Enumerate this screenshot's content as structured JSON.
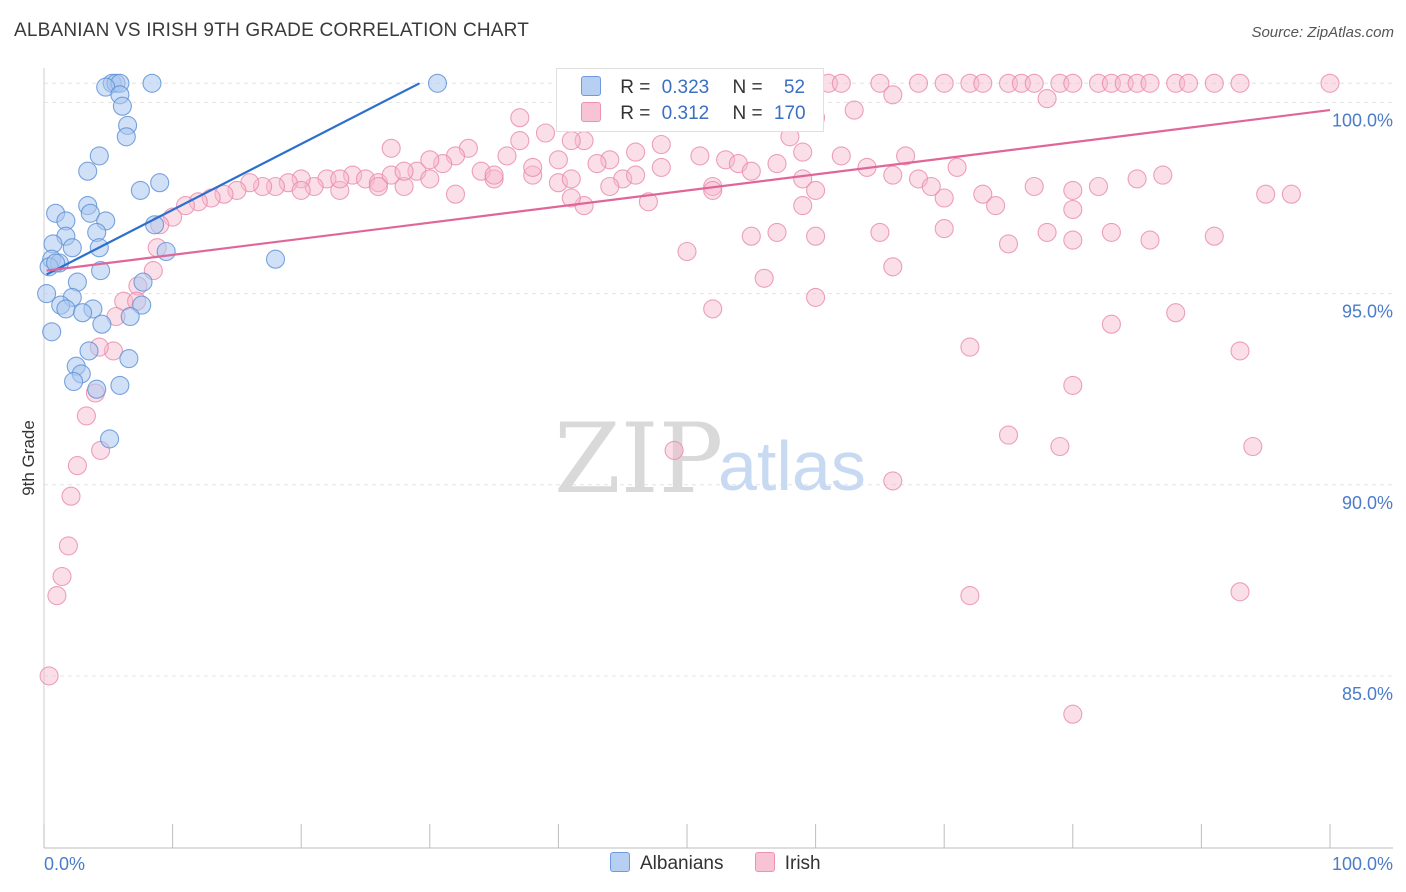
{
  "header": {
    "title": "ALBANIAN VS IRISH 9TH GRADE CORRELATION CHART",
    "source": "Source: ZipAtlas.com"
  },
  "watermark": {
    "zip": "ZIP",
    "atlas": "atlas"
  },
  "colors": {
    "albanian_fill": "#a9c6ee",
    "albanian_stroke": "#5b8fd6",
    "albanian_line": "#2d6fcf",
    "irish_fill": "#f6b8cc",
    "irish_stroke": "#e98aaa",
    "irish_line": "#e0669a",
    "grid": "#e4e4e4",
    "tick_text": "#4a7cc9"
  },
  "legend": {
    "rows": [
      {
        "r_label": "R =",
        "r_value": "0.323",
        "n_label": "N =",
        "n_value": "52"
      },
      {
        "r_label": "R =",
        "r_value": "0.312",
        "n_label": "N =",
        "n_value": "170"
      }
    ],
    "bottom": [
      "Albanians",
      "Irish"
    ]
  },
  "chart_data": {
    "type": "scatter",
    "title": "ALBANIAN VS IRISH 9TH GRADE CORRELATION CHART",
    "xlabel": "",
    "ylabel": "9th Grade",
    "xlim": [
      0,
      100
    ],
    "ylim": [
      80.5,
      100.9
    ],
    "x_tick_labels": [
      "0.0%",
      "100.0%"
    ],
    "y_ticks": [
      {
        "value": 100,
        "label": "100.0%"
      },
      {
        "value": 95,
        "label": "95.0%"
      },
      {
        "value": 90,
        "label": "90.0%"
      },
      {
        "value": 85,
        "label": "85.0%"
      }
    ],
    "series": [
      {
        "name": "Albanians",
        "r": 0.323,
        "n": 52,
        "trend": [
          [
            0.2,
            95.5
          ],
          [
            29.2,
            100.5
          ]
        ],
        "points": [
          [
            5.3,
            100.5
          ],
          [
            5.6,
            100.5
          ],
          [
            5.9,
            100.5
          ],
          [
            8.4,
            100.5
          ],
          [
            30.6,
            100.5
          ],
          [
            4.8,
            100.4
          ],
          [
            5.9,
            100.2
          ],
          [
            6.1,
            99.9
          ],
          [
            6.5,
            99.4
          ],
          [
            6.4,
            99.1
          ],
          [
            4.3,
            98.6
          ],
          [
            3.4,
            98.2
          ],
          [
            9.0,
            97.9
          ],
          [
            7.5,
            97.7
          ],
          [
            3.4,
            97.3
          ],
          [
            3.6,
            97.1
          ],
          [
            0.9,
            97.1
          ],
          [
            4.8,
            96.9
          ],
          [
            1.7,
            96.9
          ],
          [
            8.6,
            96.8
          ],
          [
            4.1,
            96.6
          ],
          [
            1.7,
            96.5
          ],
          [
            0.7,
            96.3
          ],
          [
            4.3,
            96.2
          ],
          [
            2.2,
            96.2
          ],
          [
            9.5,
            96.1
          ],
          [
            0.6,
            95.9
          ],
          [
            1.2,
            95.8
          ],
          [
            18.0,
            95.9
          ],
          [
            4.4,
            95.6
          ],
          [
            0.4,
            95.7
          ],
          [
            7.7,
            95.3
          ],
          [
            2.6,
            95.3
          ],
          [
            0.2,
            95.0
          ],
          [
            2.2,
            94.9
          ],
          [
            1.3,
            94.7
          ],
          [
            1.7,
            94.6
          ],
          [
            3.8,
            94.6
          ],
          [
            7.6,
            94.7
          ],
          [
            3.0,
            94.5
          ],
          [
            6.7,
            94.4
          ],
          [
            4.5,
            94.2
          ],
          [
            0.6,
            94.0
          ],
          [
            3.5,
            93.5
          ],
          [
            6.6,
            93.3
          ],
          [
            2.5,
            93.1
          ],
          [
            2.9,
            92.9
          ],
          [
            2.3,
            92.7
          ],
          [
            5.9,
            92.6
          ],
          [
            4.1,
            92.5
          ],
          [
            5.1,
            91.2
          ],
          [
            0.9,
            95.8
          ]
        ]
      },
      {
        "name": "Irish",
        "r": 0.312,
        "n": 170,
        "trend": [
          [
            0.2,
            95.6
          ],
          [
            100,
            99.8
          ]
        ],
        "points": [
          [
            53,
            100.5
          ],
          [
            55,
            100.5
          ],
          [
            57,
            100.5
          ],
          [
            61,
            100.5
          ],
          [
            62,
            100.5
          ],
          [
            65,
            100.5
          ],
          [
            68,
            100.5
          ],
          [
            70,
            100.5
          ],
          [
            72,
            100.5
          ],
          [
            73,
            100.5
          ],
          [
            75,
            100.5
          ],
          [
            76,
            100.5
          ],
          [
            77,
            100.5
          ],
          [
            79,
            100.5
          ],
          [
            80,
            100.5
          ],
          [
            82,
            100.5
          ],
          [
            83,
            100.5
          ],
          [
            84,
            100.5
          ],
          [
            85,
            100.5
          ],
          [
            86,
            100.5
          ],
          [
            88,
            100.5
          ],
          [
            89,
            100.5
          ],
          [
            91,
            100.5
          ],
          [
            93,
            100.5
          ],
          [
            100,
            100.5
          ],
          [
            66,
            100.2
          ],
          [
            56,
            100.2
          ],
          [
            78,
            100.1
          ],
          [
            47,
            100.2
          ],
          [
            63,
            99.8
          ],
          [
            60,
            99.6
          ],
          [
            37,
            99.6
          ],
          [
            50,
            99.5
          ],
          [
            39,
            99.2
          ],
          [
            58,
            99.1
          ],
          [
            42,
            99.0
          ],
          [
            48,
            98.9
          ],
          [
            27,
            98.8
          ],
          [
            33,
            98.8
          ],
          [
            32,
            98.6
          ],
          [
            36,
            98.6
          ],
          [
            46,
            98.7
          ],
          [
            51,
            98.6
          ],
          [
            53,
            98.5
          ],
          [
            54,
            98.4
          ],
          [
            44,
            98.5
          ],
          [
            31,
            98.4
          ],
          [
            34,
            98.2
          ],
          [
            38,
            98.1
          ],
          [
            45,
            98.0
          ],
          [
            29,
            98.2
          ],
          [
            30,
            98.0
          ],
          [
            35,
            98.0
          ],
          [
            40,
            97.9
          ],
          [
            41,
            98.0
          ],
          [
            24,
            98.1
          ],
          [
            25,
            98.0
          ],
          [
            26,
            97.9
          ],
          [
            27,
            98.1
          ],
          [
            28,
            97.8
          ],
          [
            22,
            98.0
          ],
          [
            23,
            97.7
          ],
          [
            21,
            97.8
          ],
          [
            20,
            98.0
          ],
          [
            19,
            97.9
          ],
          [
            18,
            97.8
          ],
          [
            17,
            97.8
          ],
          [
            16,
            97.9
          ],
          [
            15,
            97.7
          ],
          [
            14,
            97.6
          ],
          [
            13,
            97.5
          ],
          [
            12,
            97.4
          ],
          [
            11,
            97.3
          ],
          [
            10,
            97.0
          ],
          [
            9,
            96.8
          ],
          [
            8.8,
            96.2
          ],
          [
            8.5,
            95.6
          ],
          [
            7.3,
            95.2
          ],
          [
            6.2,
            94.8
          ],
          [
            5.6,
            94.4
          ],
          [
            5.4,
            93.5
          ],
          [
            4.3,
            93.6
          ],
          [
            4.0,
            92.4
          ],
          [
            3.3,
            91.8
          ],
          [
            2.6,
            90.5
          ],
          [
            2.1,
            89.7
          ],
          [
            1.9,
            88.4
          ],
          [
            1.4,
            87.6
          ],
          [
            1.0,
            87.1
          ],
          [
            0.4,
            85.0
          ],
          [
            7.2,
            94.8
          ],
          [
            4.4,
            90.9
          ],
          [
            37,
            99.0
          ],
          [
            41,
            99.0
          ],
          [
            23,
            98.0
          ],
          [
            20,
            97.7
          ],
          [
            26,
            97.8
          ],
          [
            28,
            98.2
          ],
          [
            30,
            98.5
          ],
          [
            35,
            98.1
          ],
          [
            38,
            98.3
          ],
          [
            40,
            98.5
          ],
          [
            43,
            98.4
          ],
          [
            44,
            97.8
          ],
          [
            46,
            98.1
          ],
          [
            48,
            98.3
          ],
          [
            52,
            97.8
          ],
          [
            55,
            98.2
          ],
          [
            57,
            98.4
          ],
          [
            59,
            98.0
          ],
          [
            62,
            98.6
          ],
          [
            66,
            98.1
          ],
          [
            68,
            98.0
          ],
          [
            70,
            97.5
          ],
          [
            73,
            97.6
          ],
          [
            77,
            97.8
          ],
          [
            80,
            97.7
          ],
          [
            82,
            97.8
          ],
          [
            60,
            97.7
          ],
          [
            64,
            98.3
          ],
          [
            67,
            98.6
          ],
          [
            59,
            98.7
          ],
          [
            42,
            97.3
          ],
          [
            47,
            97.4
          ],
          [
            52,
            97.7
          ],
          [
            59,
            97.3
          ],
          [
            69,
            97.8
          ],
          [
            71,
            98.3
          ],
          [
            74,
            97.3
          ],
          [
            80,
            97.2
          ],
          [
            85,
            98.0
          ],
          [
            87,
            98.1
          ],
          [
            95,
            97.6
          ],
          [
            57,
            96.6
          ],
          [
            50,
            96.1
          ],
          [
            55,
            96.5
          ],
          [
            60,
            96.5
          ],
          [
            65,
            96.6
          ],
          [
            70,
            96.7
          ],
          [
            75,
            96.3
          ],
          [
            80,
            96.4
          ],
          [
            86,
            96.4
          ],
          [
            91,
            96.5
          ],
          [
            97,
            97.6
          ],
          [
            41,
            97.5
          ],
          [
            32,
            97.6
          ],
          [
            78,
            96.6
          ],
          [
            83,
            96.6
          ],
          [
            66,
            95.7
          ],
          [
            56,
            95.4
          ],
          [
            52,
            94.6
          ],
          [
            60,
            94.9
          ],
          [
            83,
            94.2
          ],
          [
            88,
            94.5
          ],
          [
            93,
            93.5
          ],
          [
            72,
            93.6
          ],
          [
            80,
            92.6
          ],
          [
            75,
            91.3
          ],
          [
            79,
            91.0
          ],
          [
            94,
            91.0
          ],
          [
            49,
            90.9
          ],
          [
            66,
            90.1
          ],
          [
            72,
            87.1
          ],
          [
            80,
            84.0
          ],
          [
            93,
            87.2
          ]
        ]
      }
    ]
  }
}
